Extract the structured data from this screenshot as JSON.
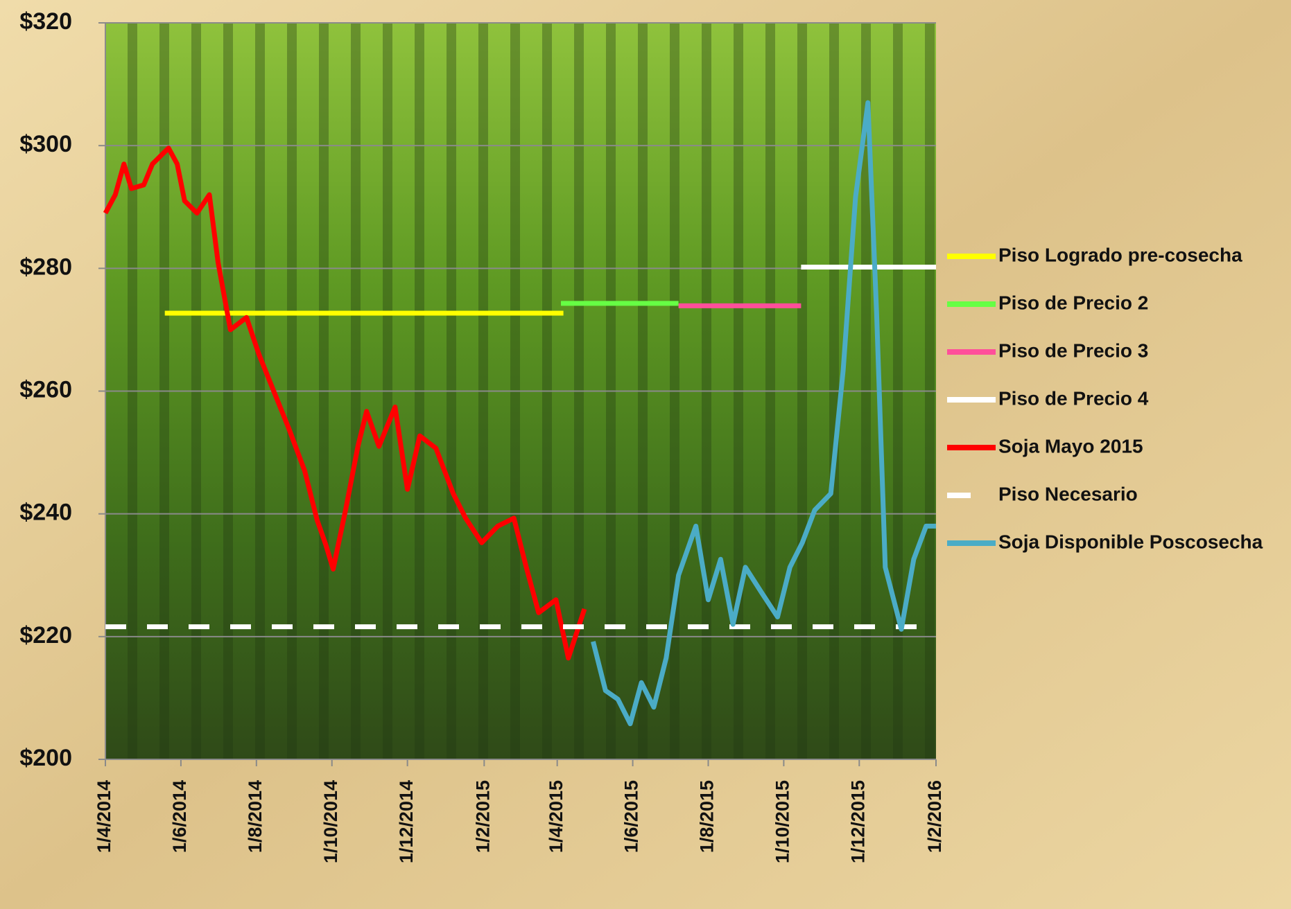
{
  "chart_data": {
    "type": "line",
    "xlim": [
      "1/4/2014",
      "1/2/2016"
    ],
    "xticks": [
      "1/4/2014",
      "1/6/2014",
      "1/8/2014",
      "1/10/2014",
      "1/12/2014",
      "1/2/2015",
      "1/4/2015",
      "1/6/2015",
      "1/8/2015",
      "1/10/2015",
      "1/12/2015",
      "1/2/2016"
    ],
    "ylim": [
      200,
      320
    ],
    "yticks": [
      {
        "value": 200,
        "label": "$200"
      },
      {
        "value": 220,
        "label": "$220"
      },
      {
        "value": 240,
        "label": "$240"
      },
      {
        "value": 260,
        "label": "$260"
      },
      {
        "value": 280,
        "label": "$280"
      },
      {
        "value": 300,
        "label": "$300"
      },
      {
        "value": 320,
        "label": "$320"
      }
    ],
    "grid": true,
    "legend": "right",
    "series": [
      {
        "name": "Piso Logrado pre-cosecha",
        "color": "#ffff00",
        "x": [
          "19/5/2014",
          "6/4/2015"
        ],
        "values": [
          272.7,
          272.7
        ]
      },
      {
        "name": "Piso de Precio 2",
        "color": "#66ff44",
        "x": [
          "4/4/2015",
          "8/7/2015"
        ],
        "values": [
          274.3,
          274.3
        ]
      },
      {
        "name": "Piso de Precio 3",
        "color": "#ff4f9a",
        "x": [
          "8/7/2015",
          "15/10/2015"
        ],
        "values": [
          273.9,
          273.9
        ]
      },
      {
        "name": "Piso de Precio 4",
        "color": "#ffffff",
        "x": [
          "15/10/2015",
          "1/2/2016"
        ],
        "values": [
          280.2,
          280.2
        ]
      },
      {
        "name": "Soja Mayo 2015",
        "color": "#ff0000",
        "x": [
          "1/4/2014",
          "9/4/2014",
          "16/4/2014",
          "22/4/2014",
          "2/5/2014",
          "9/5/2014",
          "22/5/2014",
          "29/5/2014",
          "4/6/2014",
          "14/6/2014",
          "24/6/2014",
          "1/7/2014",
          "11/7/2014",
          "24/7/2014",
          "3/8/2014",
          "13/8/2014",
          "27/8/2014",
          "9/9/2014",
          "19/9/2014",
          "26/9/2014",
          "2/10/2014",
          "12/10/2014",
          "22/10/2014",
          "29/10/2014",
          "8/11/2014",
          "21/11/2014",
          "1/12/2014",
          "11/12/2014",
          "24/12/2014",
          "7/1/2015",
          "17/1/2015",
          "30/1/2015",
          "12/2/2015",
          "25/2/2015",
          "7/3/2015",
          "17/3/2015",
          "31/3/2015",
          "10/4/2015",
          "23/4/2015"
        ],
        "values": [
          289,
          292,
          297,
          293,
          293.6,
          297,
          299.6,
          297,
          291,
          289,
          292,
          281,
          270,
          272,
          266,
          261,
          254,
          247,
          239,
          235,
          231,
          240.6,
          251,
          256.7,
          251,
          257.4,
          244,
          252.7,
          250.7,
          243.3,
          239.3,
          235.3,
          238,
          239.3,
          231.3,
          223.9,
          226,
          216.5,
          224.5
        ]
      },
      {
        "name": "Piso Necesario",
        "color": "#ffffff",
        "dashed": true,
        "x": [
          "1/4/2014",
          "1/2/2016"
        ],
        "values": [
          221.6,
          221.6
        ]
      },
      {
        "name": "Soja Disponible Poscosecha",
        "color": "#4bacc6",
        "x": [
          "30/4/2015",
          "10/5/2015",
          "20/5/2015",
          "30/5/2015",
          "8/6/2015",
          "18/6/2015",
          "28/6/2015",
          "8/7/2015",
          "22/7/2015",
          "1/8/2015",
          "11/8/2015",
          "21/8/2015",
          "31/8/2015",
          "13/9/2015",
          "26/9/2015",
          "6/10/2015",
          "16/10/2015",
          "26/10/2015",
          "8/11/2015",
          "18/11/2015",
          "28/11/2015",
          "8/12/2015",
          "15/12/2015",
          "22/12/2015",
          "4/1/2016",
          "14/1/2016",
          "24/1/2016",
          "1/2/2016"
        ],
        "values": [
          219.2,
          211.2,
          209.8,
          205.8,
          212.5,
          208.5,
          216.5,
          230,
          238,
          226,
          232.6,
          222,
          231.3,
          227.2,
          223.2,
          231.3,
          235.3,
          240.6,
          243.3,
          263.4,
          291.6,
          307,
          272.8,
          231.3,
          221.2,
          232.6,
          238,
          238
        ]
      }
    ]
  }
}
